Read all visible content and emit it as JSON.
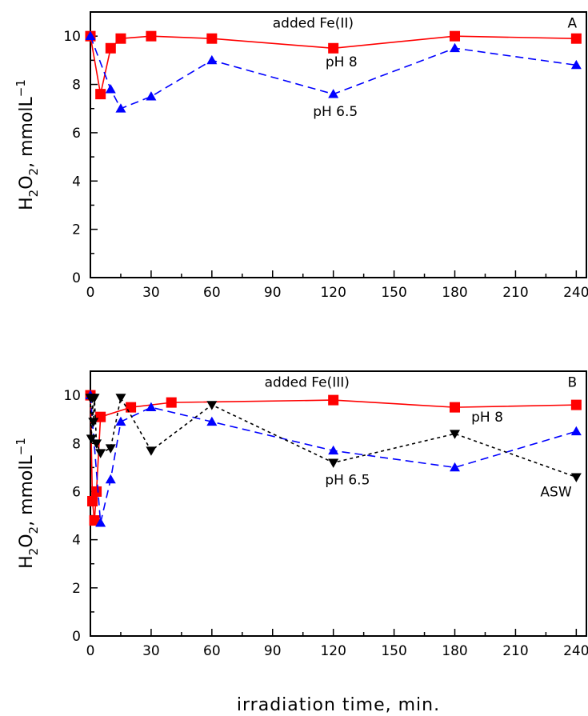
{
  "chart_data": [
    {
      "type": "line",
      "panel_label": "A",
      "xlabel": "",
      "ylabel": {
        "base": "H",
        "sub": "2",
        "mid": "O",
        "sub2": "2",
        "unit": ",  mmolL",
        "sup": "−1"
      },
      "xlim": [
        0,
        245
      ],
      "ylim": [
        0,
        11
      ],
      "xticks": [
        0,
        30,
        60,
        90,
        120,
        150,
        180,
        210,
        240
      ],
      "yticks": [
        0,
        2,
        4,
        6,
        8,
        10
      ],
      "annotations": [
        {
          "text": "added Fe(II)",
          "x": 110,
          "y": 10.35
        },
        {
          "text": "A",
          "x": 238,
          "y": 10.35
        },
        {
          "text": "pH  8",
          "x": 124,
          "y": 8.75
        },
        {
          "text": "pH  6.5",
          "x": 121,
          "y": 6.7
        }
      ],
      "series": [
        {
          "name": "pH 8",
          "color": "#ff0000",
          "marker": "square",
          "dash": "solid",
          "x": [
            0,
            5,
            10,
            15,
            30,
            60,
            120,
            180,
            240
          ],
          "y": [
            10.0,
            7.6,
            9.5,
            9.9,
            10.0,
            9.9,
            9.5,
            10.0,
            9.9
          ]
        },
        {
          "name": "pH 6.5",
          "color": "#0000ff",
          "marker": "triangle-up",
          "dash": "dashed",
          "x": [
            0,
            10,
            15,
            30,
            60,
            120,
            180,
            240
          ],
          "y": [
            10.0,
            7.8,
            7.0,
            7.5,
            9.0,
            7.6,
            9.5,
            8.8
          ]
        }
      ]
    },
    {
      "type": "line",
      "panel_label": "B",
      "xlabel": "irradiation  time,  min.",
      "ylabel": {
        "base": "H",
        "sub": "2",
        "mid": "O",
        "sub2": "2",
        "unit": ",  mmolL",
        "sup": "−1"
      },
      "xlim": [
        0,
        245
      ],
      "ylim": [
        0,
        11
      ],
      "xticks": [
        0,
        30,
        60,
        90,
        120,
        150,
        180,
        210,
        240
      ],
      "yticks": [
        0,
        2,
        4,
        6,
        8,
        10
      ],
      "annotations": [
        {
          "text": "added Fe(III)",
          "x": 107,
          "y": 10.35
        },
        {
          "text": "B",
          "x": 238,
          "y": 10.35
        },
        {
          "text": "pH  8",
          "x": 196,
          "y": 8.9
        },
        {
          "text": "pH  6.5",
          "x": 127,
          "y": 6.3
        },
        {
          "text": "ASW",
          "x": 230,
          "y": 5.8
        }
      ],
      "series": [
        {
          "name": "pH 8",
          "color": "#ff0000",
          "marker": "square",
          "dash": "solid",
          "x": [
            0,
            1,
            2,
            3,
            5,
            20,
            40,
            120,
            180,
            240
          ],
          "y": [
            10.0,
            5.6,
            4.8,
            6.0,
            9.1,
            9.5,
            9.7,
            9.8,
            9.5,
            9.6
          ]
        },
        {
          "name": "pH 6.5",
          "color": "#0000ff",
          "marker": "triangle-up",
          "dash": "dashed",
          "x": [
            0,
            5,
            10,
            15,
            30,
            60,
            120,
            180,
            240
          ],
          "y": [
            10.0,
            4.7,
            6.5,
            8.9,
            9.5,
            8.9,
            7.7,
            7.0,
            8.5
          ]
        },
        {
          "name": "ASW",
          "color": "#000000",
          "marker": "triangle-down",
          "dash": "dotted",
          "x": [
            0,
            0.5,
            1,
            1.5,
            2,
            3,
            5,
            10,
            15,
            30,
            60,
            120,
            180,
            240
          ],
          "y": [
            9.9,
            8.2,
            9.9,
            8.9,
            9.9,
            8.0,
            7.6,
            7.8,
            9.9,
            7.7,
            9.6,
            7.2,
            8.4,
            6.6
          ]
        }
      ]
    }
  ]
}
